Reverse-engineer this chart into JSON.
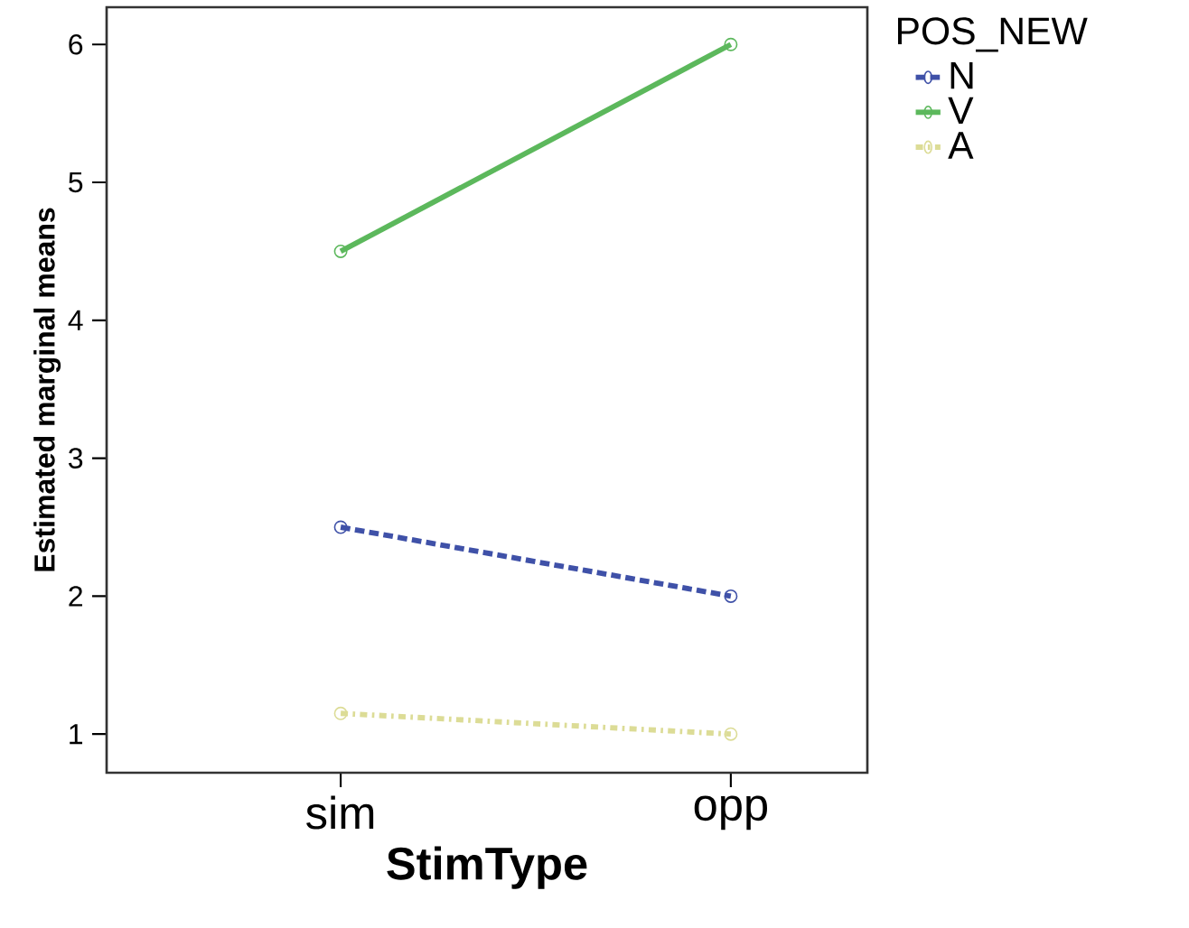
{
  "chart_data": {
    "type": "line",
    "xlabel": "StimType",
    "ylabel": "Estimated marginal means",
    "legend_title": "POS_NEW",
    "categories": [
      "sim",
      "opp"
    ],
    "series": [
      {
        "name": "N",
        "color": "#3f51a8",
        "values": [
          2.5,
          2.0
        ],
        "line_style": "dashed"
      },
      {
        "name": "V",
        "color": "#5cb85c",
        "values": [
          4.5,
          6.0
        ],
        "line_style": "solid"
      },
      {
        "name": "A",
        "color": "#dcdc96",
        "values": [
          1.15,
          1.0
        ],
        "line_style": "dotted"
      }
    ],
    "ylim": [
      0.72,
      6.27
    ],
    "yticks": [
      1,
      2,
      3,
      4,
      5,
      6
    ],
    "marker": "circle",
    "grid": false,
    "legend": "right"
  }
}
